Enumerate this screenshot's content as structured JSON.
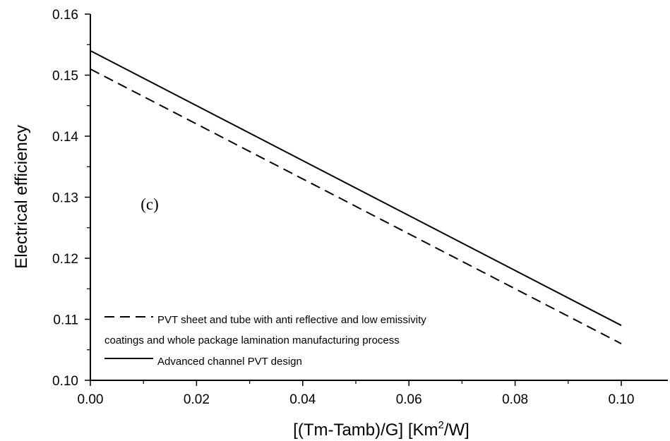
{
  "chart_data": {
    "type": "line",
    "title": "",
    "xlabel": "[(Tm-Tamb)/G]  [Km",
    "xlabel_sup": "2",
    "xlabel_tail": "/W]",
    "ylabel": "Electrical efficiency",
    "xlim": [
      0.0,
      0.1
    ],
    "ylim": [
      0.1,
      0.16
    ],
    "x_ticks": [
      0.0,
      0.02,
      0.04,
      0.06,
      0.08,
      0.1
    ],
    "x_tick_labels": [
      "0.00",
      "0.02",
      "0.04",
      "0.06",
      "0.08",
      "0.10"
    ],
    "y_ticks": [
      0.1,
      0.11,
      0.12,
      0.13,
      0.14,
      0.15,
      0.16
    ],
    "y_tick_labels": [
      "0.10",
      "0.11",
      "0.12",
      "0.13",
      "0.14",
      "0.15",
      "0.16"
    ],
    "grid": false,
    "legend_position": "bottom-left",
    "annotation": "(c)",
    "series": [
      {
        "name": "PVT sheet and tube with anti reflective and low emissivity",
        "name_line2": "coatings and whole package lamination manufacturing process",
        "style": "dashed",
        "color": "#000000",
        "x": [
          0.0,
          0.1
        ],
        "y": [
          0.151,
          0.106
        ]
      },
      {
        "name": "Advanced channel PVT design",
        "style": "solid",
        "color": "#000000",
        "x": [
          0.0,
          0.1
        ],
        "y": [
          0.154,
          0.109
        ]
      }
    ]
  }
}
